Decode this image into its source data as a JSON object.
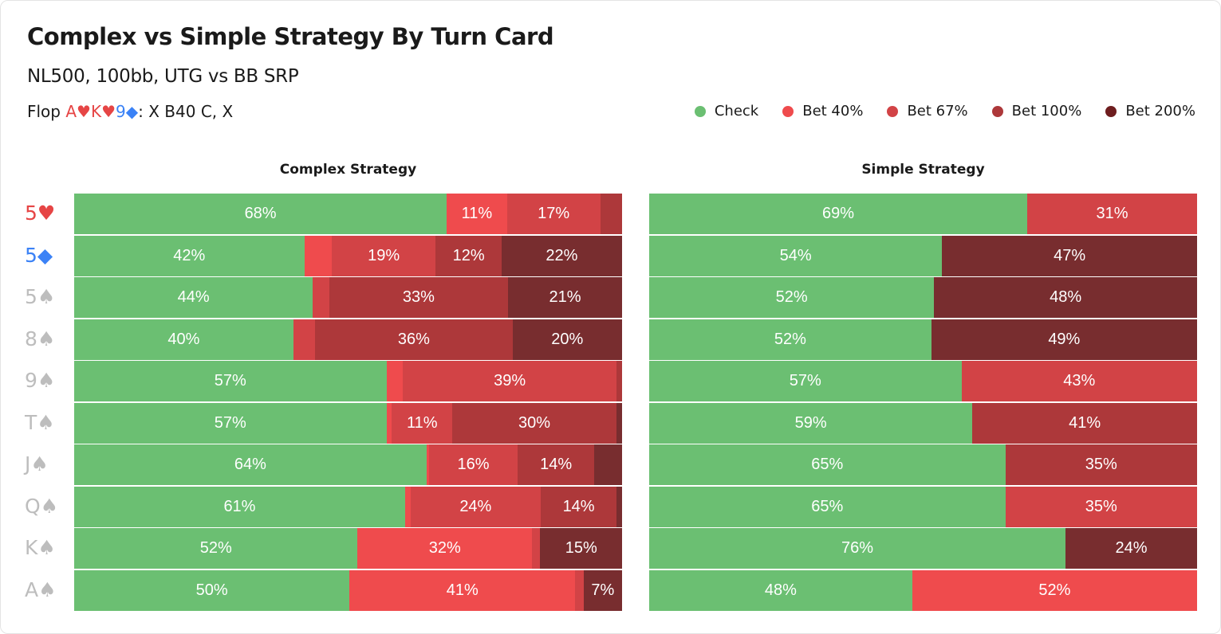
{
  "title": "Complex vs Simple Strategy By Turn Card",
  "subtitle": "NL500, 100bb, UTG vs BB SRP",
  "flop": {
    "prefix": "Flop ",
    "cards": [
      {
        "text": "A♥",
        "color": "red"
      },
      {
        "text": "K♥",
        "color": "red"
      },
      {
        "text": "9◆",
        "color": "blue"
      }
    ],
    "suffix": ": X B40 C, X"
  },
  "colors": {
    "check": "#6bbf72",
    "bet40": "#ef4b4d",
    "bet67": "#d24346",
    "bet100": "#ad383a",
    "bet200": "#782d2f",
    "legend_bet200": "#6e1d1f",
    "label_red": "#e64545",
    "label_blue": "#3b82f6",
    "label_gray": "#bdbdbd"
  },
  "chart_data": {
    "type": "bar",
    "stacked": true,
    "orientation": "horizontal",
    "legend": [
      "Check",
      "Bet 40%",
      "Bet 67%",
      "Bet 100%",
      "Bet 200%"
    ],
    "legend_position": "top-right",
    "row_labels": [
      {
        "text": "5♥",
        "color": "red"
      },
      {
        "text": "5◆",
        "color": "blue"
      },
      {
        "text": "5♠",
        "color": "gray"
      },
      {
        "text": "8♠",
        "color": "gray"
      },
      {
        "text": "9♠",
        "color": "gray"
      },
      {
        "text": "T♠",
        "color": "gray"
      },
      {
        "text": "J♠",
        "color": "gray"
      },
      {
        "text": "Q♠",
        "color": "gray"
      },
      {
        "text": "K♠",
        "color": "gray"
      },
      {
        "text": "A♠",
        "color": "gray"
      }
    ],
    "panels": [
      {
        "title": "Complex Strategy",
        "rows": [
          [
            68,
            11,
            17,
            0,
            4
          ],
          [
            42,
            5,
            19,
            12,
            22
          ],
          [
            44,
            3,
            33,
            0,
            21
          ],
          [
            40,
            4,
            36,
            0,
            20
          ],
          [
            57,
            3,
            39,
            0,
            1
          ],
          [
            57,
            1,
            11,
            30,
            1
          ],
          [
            64,
            0.5,
            16,
            14,
            5
          ],
          [
            61,
            1,
            24,
            14,
            1
          ],
          [
            52,
            32,
            1.5,
            15,
            0
          ],
          [
            50,
            41,
            1.5,
            0,
            7
          ]
        ],
        "series_of_segment": [
          [
            "check",
            "bet40",
            "bet67",
            "bet100",
            "bet100"
          ],
          [
            "check",
            "bet40",
            "bet67",
            "bet100",
            "bet200"
          ],
          [
            "check",
            "bet67",
            "bet100",
            "bet100",
            "bet200"
          ],
          [
            "check",
            "bet67",
            "bet100",
            "bet100",
            "bet200"
          ],
          [
            "check",
            "bet40",
            "bet67",
            "bet67",
            "bet100"
          ],
          [
            "check",
            "bet40",
            "bet67",
            "bet100",
            "bet200"
          ],
          [
            "check",
            "bet40",
            "bet67",
            "bet100",
            "bet200"
          ],
          [
            "check",
            "bet40",
            "bet67",
            "bet100",
            "bet200"
          ],
          [
            "check",
            "bet40",
            "bet67",
            "bet200",
            "bet200"
          ],
          [
            "check",
            "bet40",
            "bet67",
            "bet100",
            "bet200"
          ]
        ],
        "labels": [
          [
            "68%",
            "11%",
            "17%",
            "",
            ""
          ],
          [
            "42%",
            "",
            "19%",
            "12%",
            "22%"
          ],
          [
            "44%",
            "",
            "33%",
            "",
            "21%"
          ],
          [
            "40%",
            "",
            "36%",
            "",
            "20%"
          ],
          [
            "57%",
            "",
            "39%",
            "",
            ""
          ],
          [
            "57%",
            "",
            "11%",
            "30%",
            ""
          ],
          [
            "64%",
            "",
            "16%",
            "14%",
            ""
          ],
          [
            "61%",
            "",
            "24%",
            "14%",
            ""
          ],
          [
            "52%",
            "32%",
            "",
            "15%",
            ""
          ],
          [
            "50%",
            "41%",
            "",
            "",
            "7%"
          ]
        ]
      },
      {
        "title": "Simple Strategy",
        "rows": [
          [
            69,
            31
          ],
          [
            54,
            47
          ],
          [
            52,
            48
          ],
          [
            52,
            49
          ],
          [
            57,
            43
          ],
          [
            59,
            41
          ],
          [
            65,
            35
          ],
          [
            65,
            35
          ],
          [
            76,
            24
          ],
          [
            48,
            52
          ]
        ],
        "series_of_segment": [
          [
            "check",
            "bet67"
          ],
          [
            "check",
            "bet200"
          ],
          [
            "check",
            "bet200"
          ],
          [
            "check",
            "bet200"
          ],
          [
            "check",
            "bet67"
          ],
          [
            "check",
            "bet100"
          ],
          [
            "check",
            "bet100"
          ],
          [
            "check",
            "bet67"
          ],
          [
            "check",
            "bet200"
          ],
          [
            "check",
            "bet40"
          ]
        ],
        "labels": [
          [
            "69%",
            "31%"
          ],
          [
            "54%",
            "47%"
          ],
          [
            "52%",
            "48%"
          ],
          [
            "52%",
            "49%"
          ],
          [
            "57%",
            "43%"
          ],
          [
            "59%",
            "41%"
          ],
          [
            "65%",
            "35%"
          ],
          [
            "65%",
            "35%"
          ],
          [
            "76%",
            "24%"
          ],
          [
            "48%",
            "52%"
          ]
        ]
      }
    ]
  }
}
